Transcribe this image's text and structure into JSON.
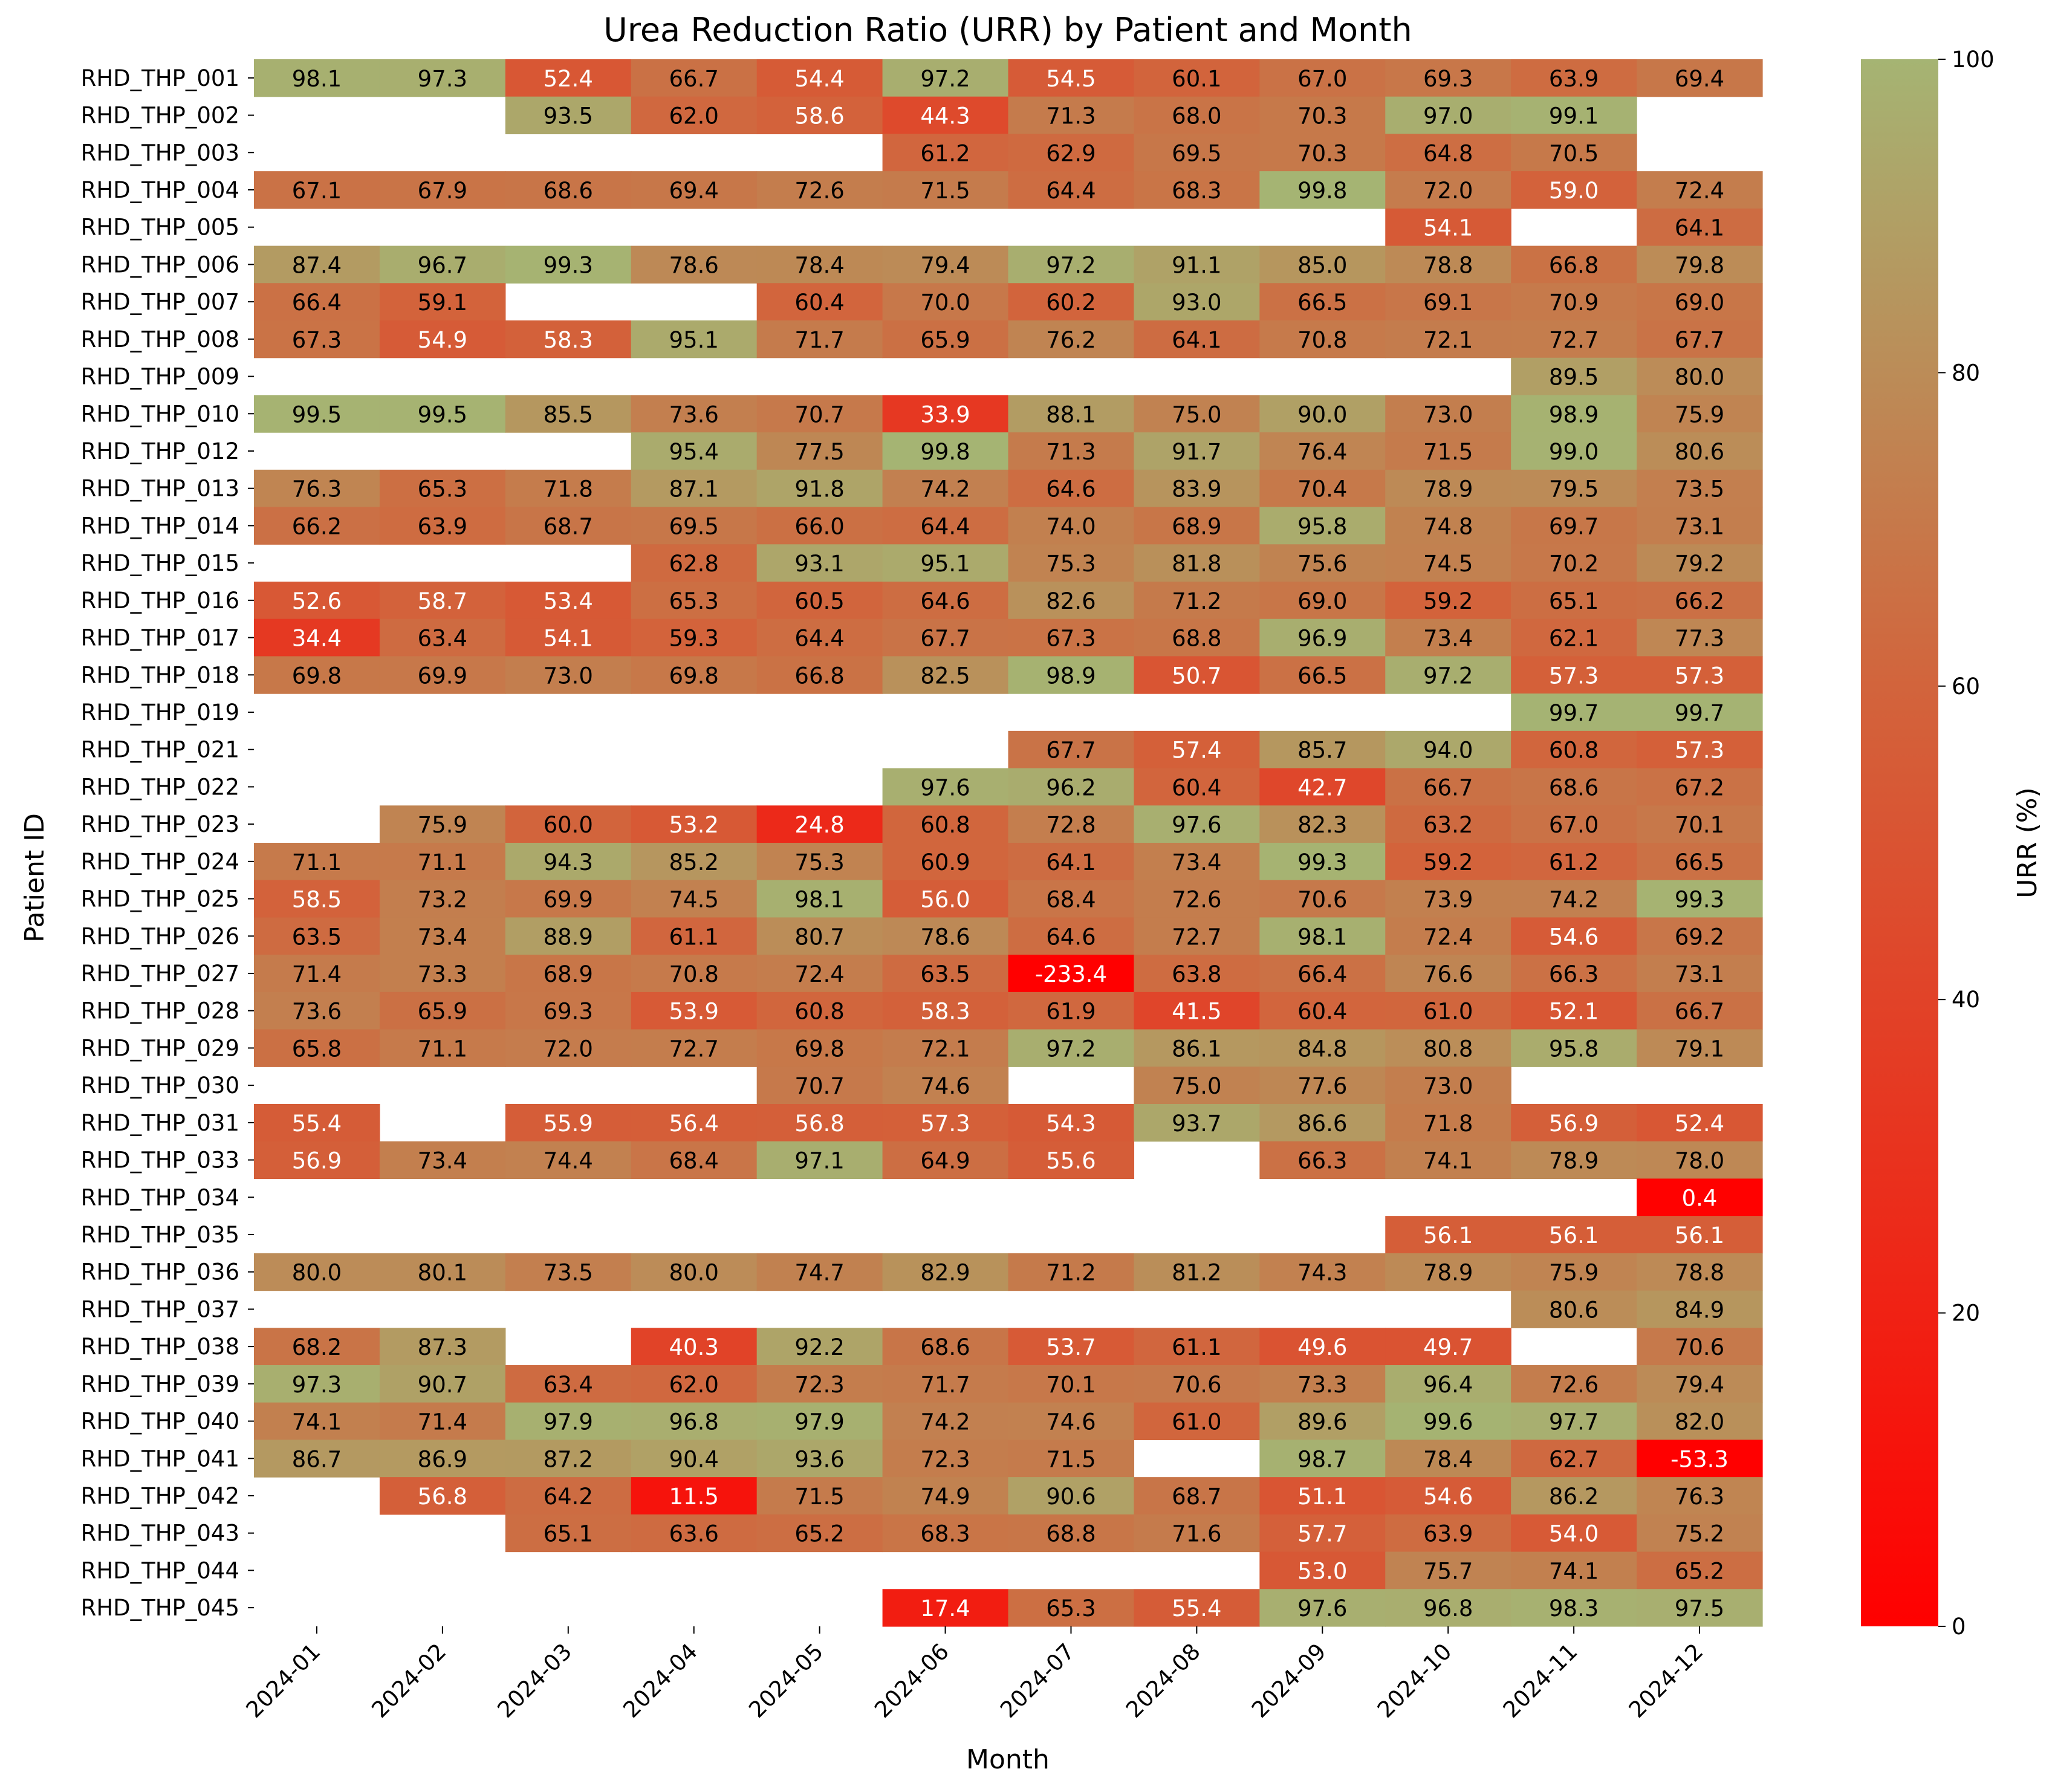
{
  "chart_data": {
    "type": "heatmap",
    "title": "Urea Reduction Ratio (URR) by Patient and Month",
    "xlabel": "Month",
    "ylabel": "Patient ID",
    "colorbar_label": "URR (%)",
    "colorbar_range": [
      0,
      100
    ],
    "colorbar_ticks": [
      0,
      20,
      40,
      60,
      80,
      100
    ],
    "colors": {
      "low": "#ff0000",
      "mid": "#d2643c",
      "high": "#a5b473"
    },
    "columns": [
      "2024-01",
      "2024-02",
      "2024-03",
      "2024-04",
      "2024-05",
      "2024-06",
      "2024-07",
      "2024-08",
      "2024-09",
      "2024-10",
      "2024-11",
      "2024-12"
    ],
    "rows": [
      "RHD_THP_001",
      "RHD_THP_002",
      "RHD_THP_003",
      "RHD_THP_004",
      "RHD_THP_005",
      "RHD_THP_006",
      "RHD_THP_007",
      "RHD_THP_008",
      "RHD_THP_009",
      "RHD_THP_010",
      "RHD_THP_012",
      "RHD_THP_013",
      "RHD_THP_014",
      "RHD_THP_015",
      "RHD_THP_016",
      "RHD_THP_017",
      "RHD_THP_018",
      "RHD_THP_019",
      "RHD_THP_021",
      "RHD_THP_022",
      "RHD_THP_023",
      "RHD_THP_024",
      "RHD_THP_025",
      "RHD_THP_026",
      "RHD_THP_027",
      "RHD_THP_028",
      "RHD_THP_029",
      "RHD_THP_030",
      "RHD_THP_031",
      "RHD_THP_033",
      "RHD_THP_034",
      "RHD_THP_035",
      "RHD_THP_036",
      "RHD_THP_037",
      "RHD_THP_038",
      "RHD_THP_039",
      "RHD_THP_040",
      "RHD_THP_041",
      "RHD_THP_042",
      "RHD_THP_043",
      "RHD_THP_044",
      "RHD_THP_045"
    ],
    "values": [
      [
        98.1,
        97.3,
        52.4,
        66.7,
        54.4,
        97.2,
        54.5,
        60.1,
        67.0,
        69.3,
        63.9,
        69.4
      ],
      [
        null,
        null,
        93.5,
        62.0,
        58.6,
        44.3,
        71.3,
        68.0,
        70.3,
        97.0,
        99.1,
        null
      ],
      [
        null,
        null,
        null,
        null,
        null,
        61.2,
        62.9,
        69.5,
        70.3,
        64.8,
        70.5,
        null
      ],
      [
        67.1,
        67.9,
        68.6,
        69.4,
        72.6,
        71.5,
        64.4,
        68.3,
        99.8,
        72.0,
        59.0,
        72.4
      ],
      [
        null,
        null,
        null,
        null,
        null,
        null,
        null,
        null,
        null,
        54.1,
        null,
        64.1
      ],
      [
        87.4,
        96.7,
        99.3,
        78.6,
        78.4,
        79.4,
        97.2,
        91.1,
        85.0,
        78.8,
        66.8,
        79.8
      ],
      [
        66.4,
        59.1,
        null,
        null,
        60.4,
        70.0,
        60.2,
        93.0,
        66.5,
        69.1,
        70.9,
        69.0
      ],
      [
        67.3,
        54.9,
        58.3,
        95.1,
        71.7,
        65.9,
        76.2,
        64.1,
        70.8,
        72.1,
        72.7,
        67.7
      ],
      [
        null,
        null,
        null,
        null,
        null,
        null,
        null,
        null,
        null,
        null,
        89.5,
        80.0
      ],
      [
        99.5,
        99.5,
        85.5,
        73.6,
        70.7,
        33.9,
        88.1,
        75.0,
        90.0,
        73.0,
        98.9,
        75.9
      ],
      [
        null,
        null,
        null,
        95.4,
        77.5,
        99.8,
        71.3,
        91.7,
        76.4,
        71.5,
        99.0,
        80.6
      ],
      [
        76.3,
        65.3,
        71.8,
        87.1,
        91.8,
        74.2,
        64.6,
        83.9,
        70.4,
        78.9,
        79.5,
        73.5
      ],
      [
        66.2,
        63.9,
        68.7,
        69.5,
        66.0,
        64.4,
        74.0,
        68.9,
        95.8,
        74.8,
        69.7,
        73.1
      ],
      [
        null,
        null,
        null,
        62.8,
        93.1,
        95.1,
        75.3,
        81.8,
        75.6,
        74.5,
        70.2,
        79.2
      ],
      [
        52.6,
        58.7,
        53.4,
        65.3,
        60.5,
        64.6,
        82.6,
        71.2,
        69.0,
        59.2,
        65.1,
        66.2
      ],
      [
        34.4,
        63.4,
        54.1,
        59.3,
        64.4,
        67.7,
        67.3,
        68.8,
        96.9,
        73.4,
        62.1,
        77.3
      ],
      [
        69.8,
        69.9,
        73.0,
        69.8,
        66.8,
        82.5,
        98.9,
        50.7,
        66.5,
        97.2,
        57.3,
        57.3
      ],
      [
        null,
        null,
        null,
        null,
        null,
        null,
        null,
        null,
        null,
        null,
        99.7,
        99.7
      ],
      [
        null,
        null,
        null,
        null,
        null,
        null,
        67.7,
        57.4,
        85.7,
        94.0,
        60.8,
        57.3
      ],
      [
        null,
        null,
        null,
        null,
        null,
        97.6,
        96.2,
        60.4,
        42.7,
        66.7,
        68.6,
        67.2
      ],
      [
        null,
        75.9,
        60.0,
        53.2,
        24.8,
        60.8,
        72.8,
        97.6,
        82.3,
        63.2,
        67.0,
        70.1
      ],
      [
        71.1,
        71.1,
        94.3,
        85.2,
        75.3,
        60.9,
        64.1,
        73.4,
        99.3,
        59.2,
        61.2,
        66.5
      ],
      [
        58.5,
        73.2,
        69.9,
        74.5,
        98.1,
        56.0,
        68.4,
        72.6,
        70.6,
        73.9,
        74.2,
        99.3
      ],
      [
        63.5,
        73.4,
        88.9,
        61.1,
        80.7,
        78.6,
        64.6,
        72.7,
        98.1,
        72.4,
        54.6,
        69.2
      ],
      [
        71.4,
        73.3,
        68.9,
        70.8,
        72.4,
        63.5,
        -233.4,
        63.8,
        66.4,
        76.6,
        66.3,
        73.1
      ],
      [
        73.6,
        65.9,
        69.3,
        53.9,
        60.8,
        58.3,
        61.9,
        41.5,
        60.4,
        61.0,
        52.1,
        66.7
      ],
      [
        65.8,
        71.1,
        72.0,
        72.7,
        69.8,
        72.1,
        97.2,
        86.1,
        84.8,
        80.8,
        95.8,
        79.1
      ],
      [
        null,
        null,
        null,
        null,
        70.7,
        74.6,
        null,
        75.0,
        77.6,
        73.0,
        null,
        null
      ],
      [
        55.4,
        null,
        55.9,
        56.4,
        56.8,
        57.3,
        54.3,
        93.7,
        86.6,
        71.8,
        56.9,
        52.4
      ],
      [
        56.9,
        73.4,
        74.4,
        68.4,
        97.1,
        64.9,
        55.6,
        null,
        66.3,
        74.1,
        78.9,
        78.0
      ],
      [
        null,
        null,
        null,
        null,
        null,
        null,
        null,
        null,
        null,
        null,
        null,
        0.4
      ],
      [
        null,
        null,
        null,
        null,
        null,
        null,
        null,
        null,
        null,
        56.1,
        56.1,
        56.1
      ],
      [
        80.0,
        80.1,
        73.5,
        80.0,
        74.7,
        82.9,
        71.2,
        81.2,
        74.3,
        78.9,
        75.9,
        78.8
      ],
      [
        null,
        null,
        null,
        null,
        null,
        null,
        null,
        null,
        null,
        null,
        80.6,
        84.9
      ],
      [
        68.2,
        87.3,
        null,
        40.3,
        92.2,
        68.6,
        53.7,
        61.1,
        49.6,
        49.7,
        null,
        70.6
      ],
      [
        97.3,
        90.7,
        63.4,
        62.0,
        72.3,
        71.7,
        70.1,
        70.6,
        73.3,
        96.4,
        72.6,
        79.4
      ],
      [
        74.1,
        71.4,
        97.9,
        96.8,
        97.9,
        74.2,
        74.6,
        61.0,
        89.6,
        99.6,
        97.7,
        82.0
      ],
      [
        86.7,
        86.9,
        87.2,
        90.4,
        93.6,
        72.3,
        71.5,
        null,
        98.7,
        78.4,
        62.7,
        -53.3
      ],
      [
        null,
        56.8,
        64.2,
        11.5,
        71.5,
        74.9,
        90.6,
        68.7,
        51.1,
        54.6,
        86.2,
        76.3
      ],
      [
        null,
        null,
        65.1,
        63.6,
        65.2,
        68.3,
        68.8,
        71.6,
        57.7,
        63.9,
        54.0,
        75.2
      ],
      [
        null,
        null,
        null,
        null,
        null,
        null,
        null,
        null,
        53.0,
        75.7,
        74.1,
        65.2
      ],
      [
        null,
        null,
        null,
        null,
        null,
        17.4,
        65.3,
        55.4,
        97.6,
        96.8,
        98.3,
        97.5
      ]
    ]
  }
}
